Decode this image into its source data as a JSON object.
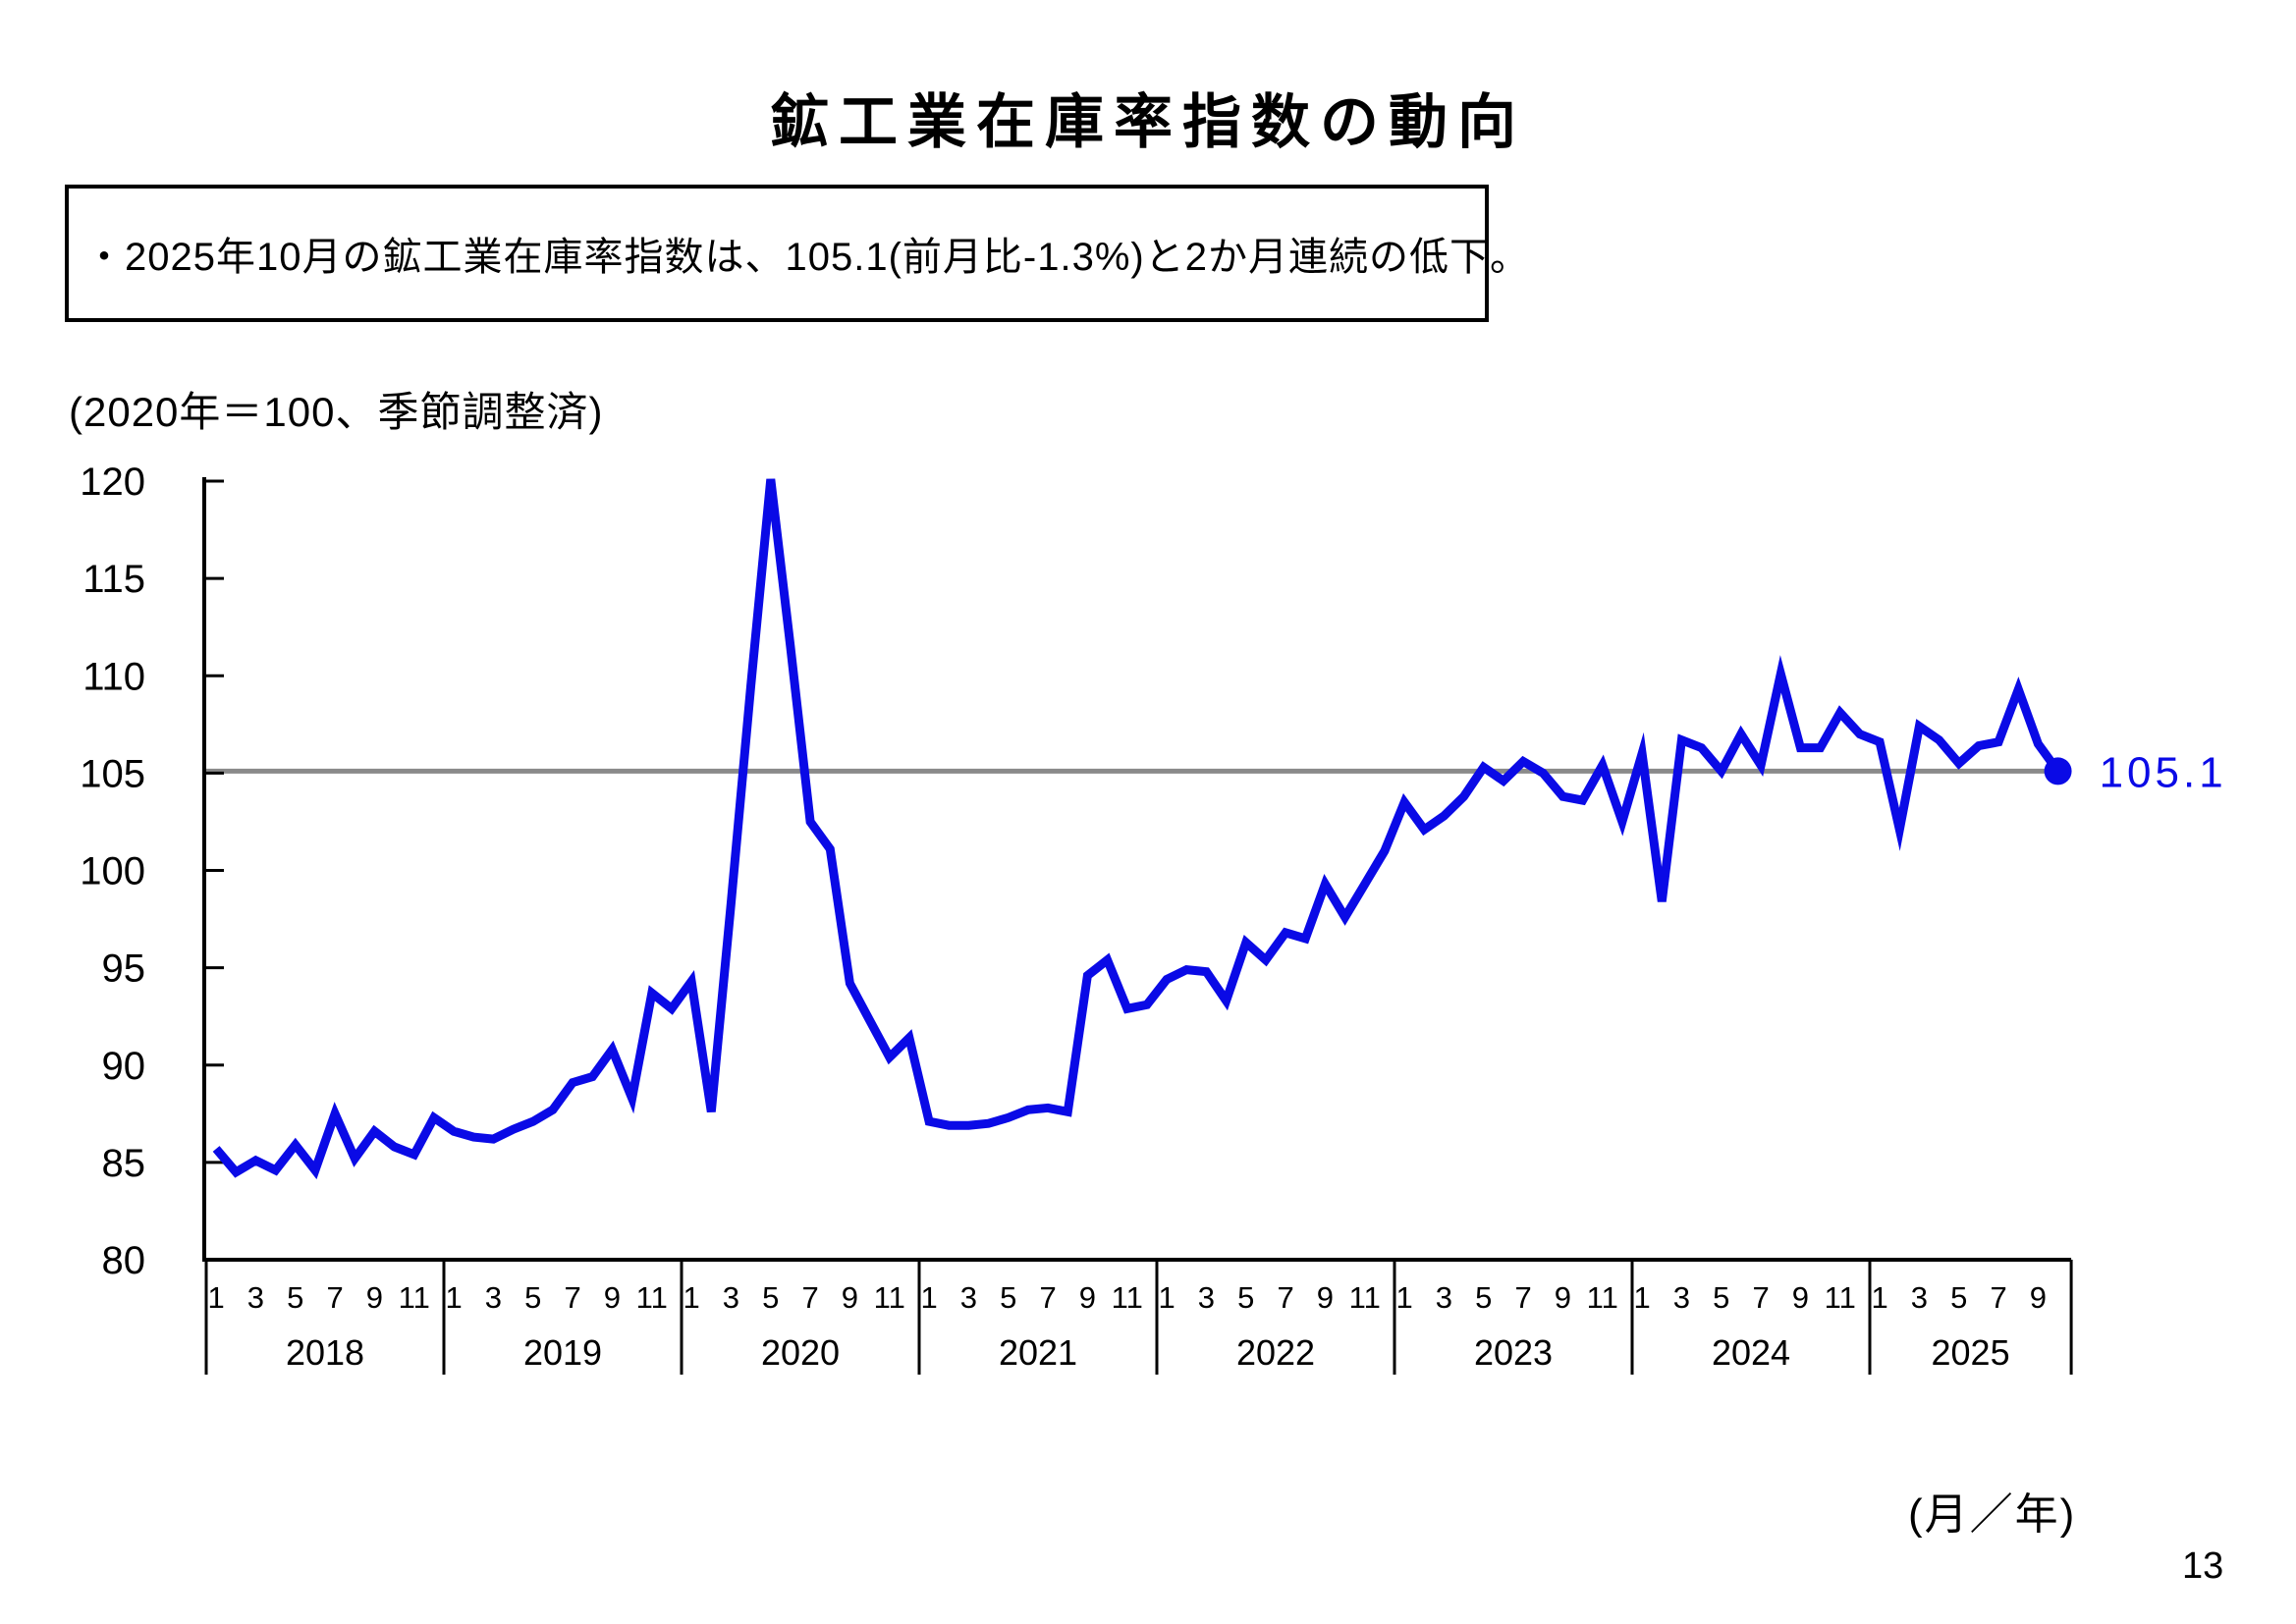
{
  "page": {
    "title": "鉱工業在庫率指数の動向",
    "bullet": "・2025年10月の鉱工業在庫率指数は、105.1(前月比-1.3%)と2か月連続の低下。",
    "unit_note": "(2020年＝100、季節調整済)",
    "xaxis_note": "(月／年)",
    "page_number": "13"
  },
  "colors": {
    "line": "#0a0ae6",
    "reference_line": "#8a8a8a",
    "text": "#000000",
    "background": "#ffffff"
  },
  "latest": {
    "label": "105.1",
    "value": 105.1,
    "period": "2025年10月",
    "mom_change_pct": -1.3
  },
  "chart_data": {
    "type": "line",
    "title": "鉱工業在庫率指数の動向",
    "ylabel": "(2020年＝100、季節調整済)",
    "xlabel": "(月／年)",
    "ylim": [
      80,
      120
    ],
    "ytick_step": 5,
    "ytick_labels": [
      "80",
      "85",
      "90",
      "95",
      "100",
      "105",
      "110",
      "115",
      "120"
    ],
    "grid": false,
    "legend": "none",
    "reference_line_value": 105.1,
    "years": [
      "2018",
      "2019",
      "2020",
      "2021",
      "2022",
      "2023",
      "2024",
      "2025"
    ],
    "month_tick_labels": [
      "1",
      "3",
      "5",
      "7",
      "9",
      "11"
    ],
    "last_year_month_tick_labels": [
      "1",
      "3",
      "5",
      "7",
      "9"
    ],
    "months_in_last_year": 10,
    "series": [
      {
        "name": "鉱工業在庫率指数（季節調整済）",
        "start": "2018-01",
        "frequency": "monthly",
        "values": [
          85.7,
          84.5,
          85.1,
          84.6,
          85.9,
          84.6,
          87.5,
          85.2,
          86.6,
          85.8,
          85.4,
          87.3,
          86.6,
          86.3,
          86.2,
          86.7,
          87.1,
          87.7,
          89.1,
          89.4,
          90.8,
          88.3,
          93.7,
          92.9,
          94.3,
          87.6,
          98.3,
          109.5,
          120.1,
          111.5,
          102.5,
          101.1,
          94.2,
          92.3,
          90.4,
          91.4,
          87.1,
          86.9,
          86.9,
          87.0,
          87.3,
          87.7,
          87.8,
          87.6,
          94.6,
          95.4,
          92.9,
          93.1,
          94.4,
          94.9,
          94.8,
          93.3,
          96.3,
          95.4,
          96.8,
          96.5,
          99.3,
          97.6,
          99.3,
          101.0,
          103.5,
          102.1,
          102.8,
          103.8,
          105.3,
          104.6,
          105.6,
          105.0,
          103.8,
          103.6,
          105.4,
          102.5,
          106.0,
          98.4,
          106.7,
          106.3,
          105.1,
          107.0,
          105.4,
          110.1,
          106.3,
          106.3,
          108.1,
          107.0,
          106.6,
          102.1,
          107.4,
          106.7,
          105.5,
          106.4,
          106.6,
          109.3,
          106.5,
          105.1
        ]
      }
    ],
    "annotation": {
      "text": "105.1",
      "at": "2025-10"
    }
  }
}
